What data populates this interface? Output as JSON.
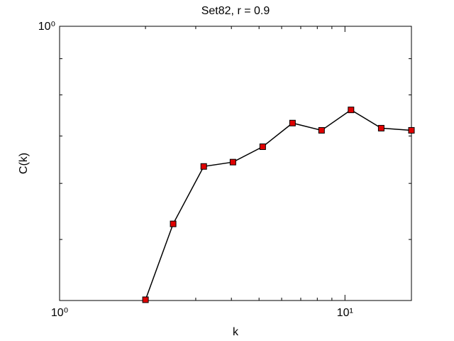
{
  "chart_data": {
    "type": "line",
    "title": "Set82, r = 0.9",
    "x_label": "k",
    "y_label": "C(k)",
    "x": [
      2.0,
      2.5,
      3.2,
      4.05,
      5.15,
      6.55,
      8.28,
      10.5,
      13.4,
      17.1
    ],
    "series": [
      {
        "name": "C(k)",
        "color": "#000000",
        "marker_color": "#e00000",
        "values": [
          0.411,
          0.526,
          0.634,
          0.643,
          0.676,
          0.73,
          0.713,
          0.762,
          0.718,
          0.713
        ]
      }
    ],
    "xlim": [
      1,
      17.1
    ],
    "ylim": [
      0.41,
      1
    ],
    "xticks": [
      {
        "value": 1,
        "label": "10⁰"
      },
      {
        "value": 10,
        "label": "10¹"
      }
    ],
    "yticks": [
      {
        "value": 1,
        "label": "10⁰"
      }
    ],
    "log_x": true,
    "log_y": true,
    "grid": false
  }
}
